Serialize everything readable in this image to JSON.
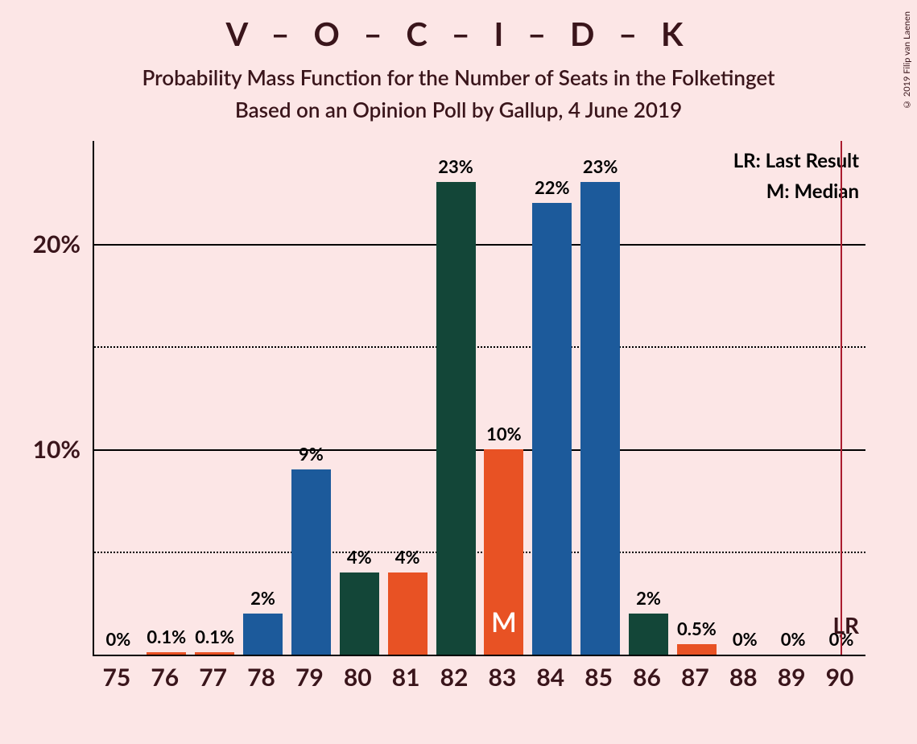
{
  "title": "V – O – C – I – D – K",
  "subtitle_line1": "Probability Mass Function for the Number of Seats in the Folketinget",
  "subtitle_line2": "Based on an Opinion Poll by Gallup, 4 June 2019",
  "copyright": "© 2019 Filip van Laenen",
  "legend": {
    "lr": "LR: Last Result",
    "m": "M: Median"
  },
  "chart": {
    "type": "bar",
    "background_color": "#fce6e6",
    "axis_color": "#000000",
    "lr_line_color": "#aa1d2f",
    "text_color": "#3a151b",
    "ylim": [
      0,
      25
    ],
    "y_major_ticks": [
      10,
      20
    ],
    "y_minor_ticks": [
      5,
      15
    ],
    "y_tick_labels": {
      "10": "10%",
      "20": "20%"
    },
    "x_categories": [
      75,
      76,
      77,
      78,
      79,
      80,
      81,
      82,
      83,
      84,
      85,
      86,
      87,
      88,
      89,
      90
    ],
    "bar_width_ratio": 0.82,
    "median_index": 8,
    "median_label": "M",
    "lr_x": 90,
    "lr_label": "LR",
    "bars": [
      {
        "x": 75,
        "value": 0,
        "label": "0%",
        "color": "#e85224"
      },
      {
        "x": 76,
        "value": 0.1,
        "label": "0.1%",
        "color": "#e85224"
      },
      {
        "x": 77,
        "value": 0.1,
        "label": "0.1%",
        "color": "#e85224"
      },
      {
        "x": 78,
        "value": 2,
        "label": "2%",
        "color": "#1c5a9b"
      },
      {
        "x": 79,
        "value": 9,
        "label": "9%",
        "color": "#1c5a9b"
      },
      {
        "x": 80,
        "value": 4,
        "label": "4%",
        "color": "#134638"
      },
      {
        "x": 81,
        "value": 4,
        "label": "4%",
        "color": "#e85224"
      },
      {
        "x": 82,
        "value": 23,
        "label": "23%",
        "color": "#134638"
      },
      {
        "x": 83,
        "value": 10,
        "label": "10%",
        "color": "#e85224"
      },
      {
        "x": 84,
        "value": 22,
        "label": "22%",
        "color": "#1c5a9b"
      },
      {
        "x": 85,
        "value": 23,
        "label": "23%",
        "color": "#1c5a9b"
      },
      {
        "x": 86,
        "value": 2,
        "label": "2%",
        "color": "#134638"
      },
      {
        "x": 87,
        "value": 0.5,
        "label": "0.5%",
        "color": "#e85224"
      },
      {
        "x": 88,
        "value": 0,
        "label": "0%",
        "color": "#e85224"
      },
      {
        "x": 89,
        "value": 0,
        "label": "0%",
        "color": "#e85224"
      },
      {
        "x": 90,
        "value": 0,
        "label": "0%",
        "color": "#e85224"
      }
    ]
  }
}
